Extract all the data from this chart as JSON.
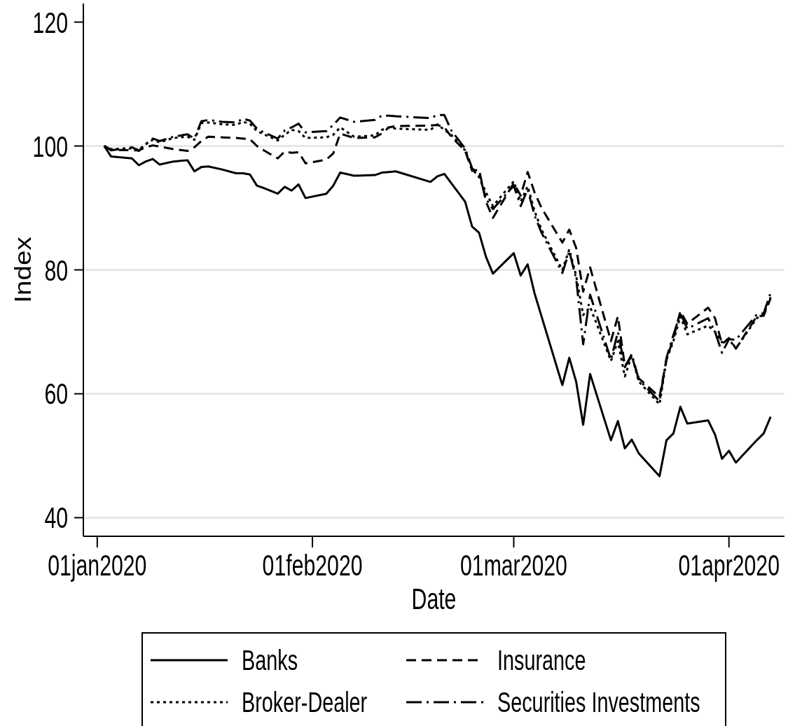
{
  "chart_data": {
    "type": "line",
    "xlabel": "Date",
    "ylabel": "Index",
    "x": [
      "2020-01-02",
      "2020-01-03",
      "2020-01-06",
      "2020-01-07",
      "2020-01-08",
      "2020-01-09",
      "2020-01-10",
      "2020-01-12",
      "2020-01-14",
      "2020-01-15",
      "2020-01-16",
      "2020-01-17",
      "2020-01-19",
      "2020-01-21",
      "2020-01-22",
      "2020-01-23",
      "2020-01-24",
      "2020-01-25",
      "2020-01-27",
      "2020-01-28",
      "2020-01-29",
      "2020-01-30",
      "2020-01-31",
      "2020-02-03",
      "2020-02-04",
      "2020-02-05",
      "2020-02-07",
      "2020-02-10",
      "2020-02-11",
      "2020-02-12",
      "2020-02-13",
      "2020-02-18",
      "2020-02-19",
      "2020-02-20",
      "2020-02-21",
      "2020-02-23",
      "2020-02-24",
      "2020-02-25",
      "2020-02-26",
      "2020-02-27",
      "2020-03-01",
      "2020-03-02",
      "2020-03-03",
      "2020-03-04",
      "2020-03-05",
      "2020-03-08",
      "2020-03-09",
      "2020-03-10",
      "2020-03-11",
      "2020-03-12",
      "2020-03-15",
      "2020-03-16",
      "2020-03-17",
      "2020-03-18",
      "2020-03-19",
      "2020-03-22",
      "2020-03-23",
      "2020-03-24",
      "2020-03-25",
      "2020-03-26",
      "2020-03-29",
      "2020-03-30",
      "2020-03-31",
      "2020-04-01",
      "2020-04-02",
      "2020-04-05",
      "2020-04-06",
      "2020-04-07"
    ],
    "series": [
      {
        "name": "Banks",
        "color": "#000000",
        "line_style": "solid",
        "values": [
          100,
          98.3,
          98.0,
          96.9,
          97.5,
          97.9,
          97.0,
          97.5,
          97.7,
          95.9,
          96.6,
          96.7,
          96.2,
          95.6,
          95.6,
          95.4,
          93.6,
          93.2,
          92.3,
          93.4,
          92.8,
          93.8,
          91.6,
          92.3,
          93.6,
          95.7,
          95.2,
          95.3,
          95.7,
          95.8,
          95.9,
          94.2,
          95.1,
          95.5,
          94.0,
          91.0,
          87.0,
          86.0,
          82.1,
          79.4,
          82.7,
          79.1,
          80.9,
          76.2,
          72.5,
          61.4,
          65.8,
          61.9,
          55.0,
          63.2,
          52.5,
          55.6,
          51.2,
          52.6,
          50.4,
          46.7,
          52.5,
          53.6,
          57.9,
          55.2,
          55.7,
          53.4,
          49.5,
          50.8,
          48.9,
          52.5,
          53.6,
          56.3
        ]
      },
      {
        "name": "Insurance",
        "color": "#000000",
        "line_style": "dashed",
        "values": [
          100,
          99.4,
          99.3,
          99.3,
          99.8,
          100.1,
          99.9,
          99.5,
          99.2,
          99.8,
          100.8,
          101.5,
          101.4,
          101.3,
          101.2,
          101.1,
          100.0,
          99.3,
          98.0,
          99.1,
          98.9,
          99.0,
          97.2,
          97.8,
          98.8,
          102.0,
          101.3,
          101.4,
          102.0,
          103.0,
          103.2,
          103.3,
          103.4,
          103.0,
          101.5,
          99.2,
          96.0,
          96.2,
          91.0,
          88.4,
          94.0,
          92.0,
          95.8,
          92.5,
          90.0,
          84.4,
          86.5,
          83.5,
          76.5,
          80.4,
          68.5,
          72.5,
          64.5,
          66.0,
          62.5,
          59.5,
          65.5,
          69.0,
          73.3,
          71.3,
          73.9,
          72.2,
          68.0,
          69.0,
          67.3,
          72.5,
          72.6,
          75.4
        ]
      },
      {
        "name": "Broker-Dealer",
        "color": "#000000",
        "line_style": "dotted",
        "values": [
          100,
          99.5,
          99.6,
          99.4,
          100.3,
          101.0,
          100.6,
          101.3,
          101.5,
          101.0,
          103.7,
          103.8,
          103.5,
          103.4,
          103.9,
          103.6,
          102.4,
          101.9,
          100.9,
          101.8,
          102.6,
          102.4,
          101.3,
          101.4,
          101.8,
          103.0,
          101.5,
          101.7,
          102.6,
          103.0,
          102.8,
          102.6,
          103.5,
          102.6,
          101.8,
          99.3,
          96.3,
          95.0,
          92.5,
          90.3,
          94.3,
          91.0,
          93.5,
          89.5,
          86.5,
          80.0,
          83.3,
          79.0,
          72.7,
          74.0,
          65.3,
          68.5,
          62.8,
          66.2,
          62.0,
          58.3,
          65.5,
          68.5,
          72.5,
          69.6,
          71.0,
          70.0,
          68.3,
          68.8,
          67.3,
          72.2,
          72.8,
          75.6
        ]
      },
      {
        "name": "Securities Investments",
        "color": "#000000",
        "line_style": "dashdot",
        "values": [
          100,
          99.3,
          99.8,
          99.2,
          100.3,
          101.2,
          100.8,
          101.5,
          101.9,
          101.2,
          104.0,
          104.2,
          103.9,
          103.8,
          104.4,
          104.1,
          102.8,
          102.2,
          101.2,
          102.5,
          103.0,
          103.6,
          102.2,
          102.4,
          103.4,
          104.6,
          103.9,
          104.2,
          104.9,
          104.9,
          104.8,
          104.5,
          105.0,
          105.0,
          102.5,
          99.6,
          96.4,
          95.5,
          91.5,
          89.8,
          93.6,
          90.3,
          93.0,
          88.8,
          86.0,
          79.5,
          83.0,
          78.5,
          68.0,
          76.0,
          65.5,
          70.0,
          64.3,
          66.4,
          62.3,
          58.8,
          65.8,
          69.5,
          73.0,
          70.5,
          72.2,
          70.0,
          66.6,
          68.8,
          68.7,
          72.8,
          73.0,
          76.3
        ]
      }
    ],
    "xlim": [
      "2019-12-30",
      "2020-04-09"
    ],
    "xticks": [
      {
        "value": "2020-01-01",
        "label": "01jan2020"
      },
      {
        "value": "2020-02-01",
        "label": "01feb2020"
      },
      {
        "value": "2020-03-01",
        "label": "01mar2020"
      },
      {
        "value": "2020-04-01",
        "label": "01apr2020"
      }
    ],
    "ylim": [
      37,
      123
    ],
    "yticks": [
      40,
      60,
      80,
      100,
      120
    ],
    "grid": "y",
    "legend": "bottom"
  }
}
